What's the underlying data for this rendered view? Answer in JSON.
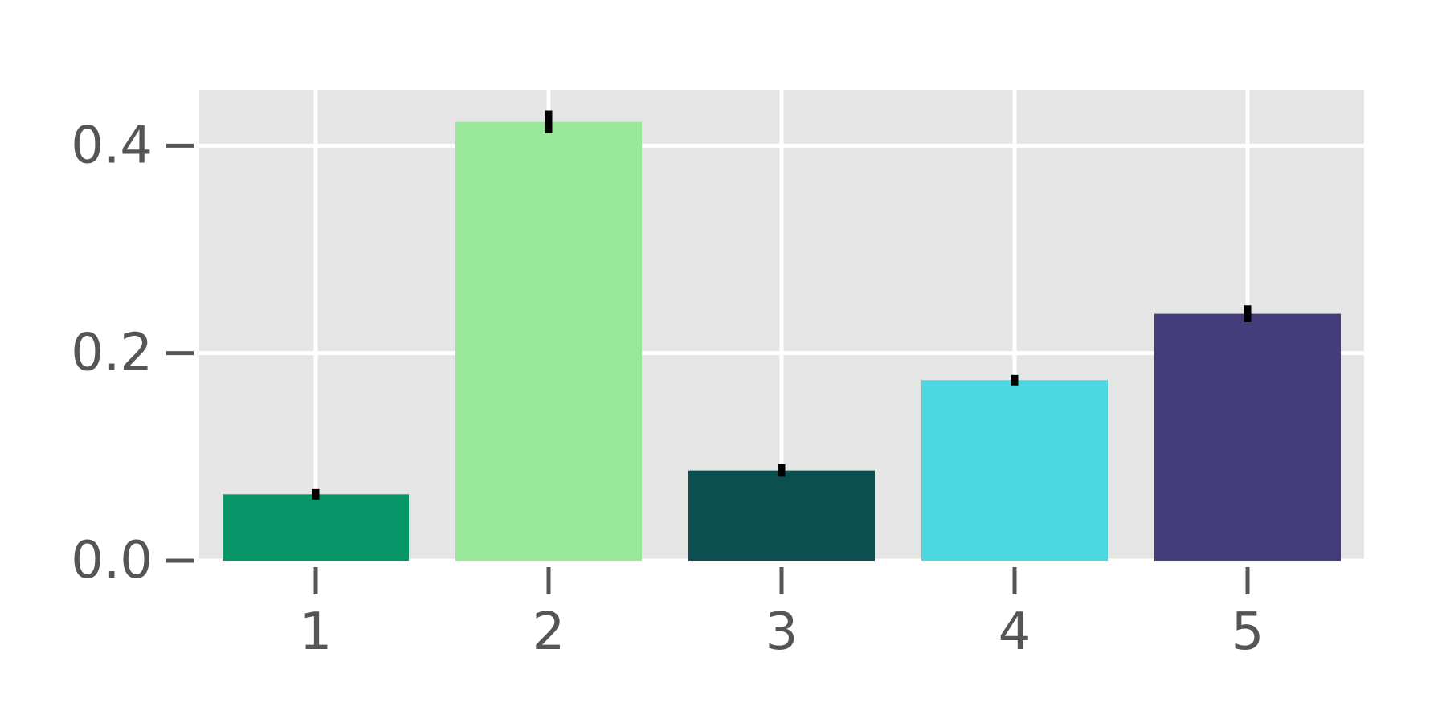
{
  "chart_data": {
    "type": "bar",
    "title": "",
    "xlabel": "",
    "ylabel": "",
    "categories": [
      "1",
      "2",
      "3",
      "4",
      "5"
    ],
    "values": [
      0.064,
      0.423,
      0.087,
      0.174,
      0.238
    ],
    "errors": [
      0.005,
      0.011,
      0.006,
      0.005,
      0.008
    ],
    "bar_colors": [
      "#069668",
      "#99e89a",
      "#0b4f51",
      "#4bd8e1",
      "#443d7b"
    ],
    "ylim": [
      0,
      0.4537
    ],
    "yticks": [
      0.0,
      0.2,
      0.4
    ],
    "ytick_labels": [
      "0.0",
      "0.2",
      "0.4"
    ],
    "grid": true,
    "legend": false,
    "colors": {
      "panel_background": "#e5e5e5",
      "grid": "#ffffff",
      "tick_text": "#555555",
      "tick_mark": "#555555",
      "error_bar": "#000000"
    }
  }
}
